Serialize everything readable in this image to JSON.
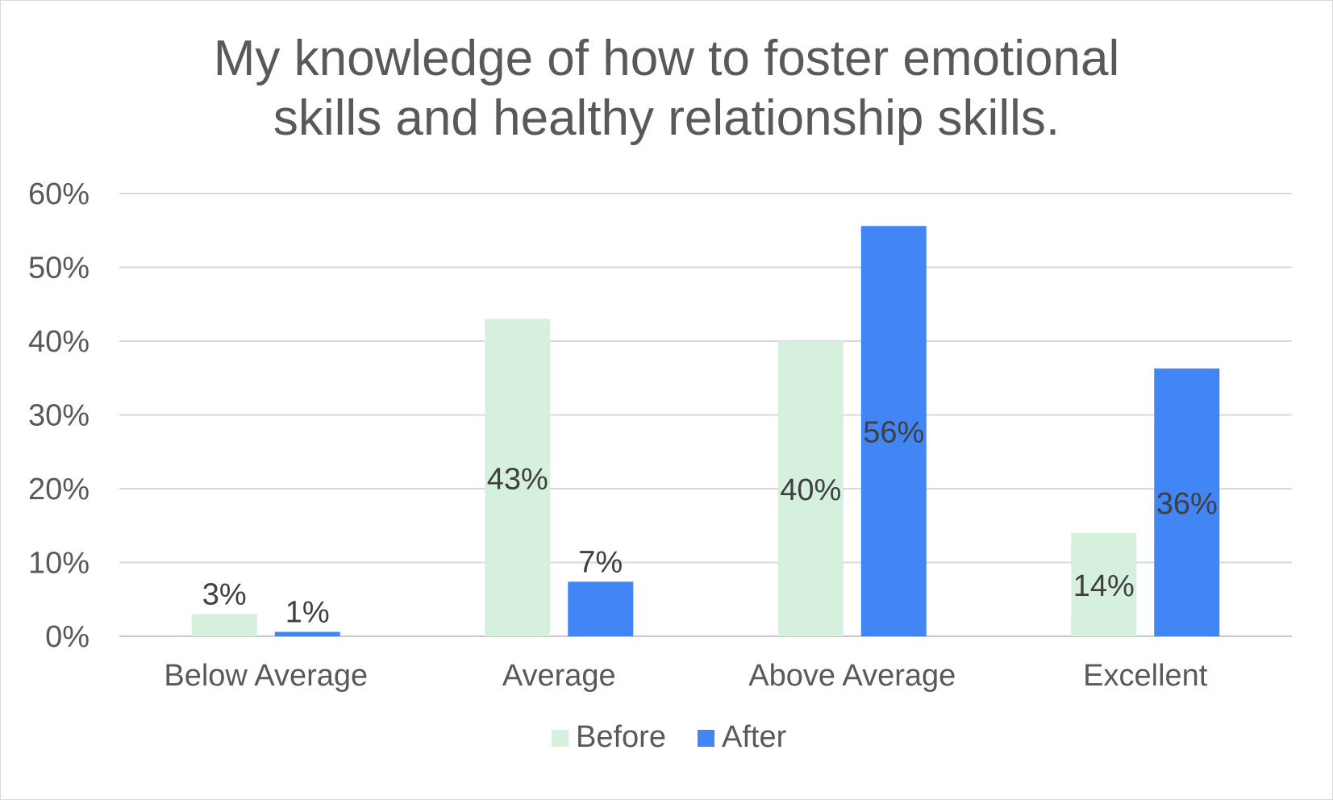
{
  "chart_data": {
    "type": "bar",
    "title_lines": [
      "My knowledge of how to foster emotional",
      "skills and healthy relationship skills."
    ],
    "categories": [
      "Below Average",
      "Average",
      "Above Average",
      "Excellent"
    ],
    "series": [
      {
        "name": "Before",
        "color": "#d5f0dc",
        "values": [
          3,
          43,
          40,
          14
        ],
        "labels": [
          "3%",
          "43%",
          "40%",
          "14%"
        ]
      },
      {
        "name": "After",
        "color": "#4285f4",
        "values": [
          0.6,
          7.4,
          55.6,
          36.3
        ],
        "labels": [
          "1%",
          "7%",
          "56%",
          "36%"
        ]
      }
    ],
    "ylim": [
      0,
      60
    ],
    "yticks": [
      "0%",
      "10%",
      "20%",
      "30%",
      "40%",
      "50%",
      "60%"
    ],
    "grid": true,
    "legend": "bottom"
  }
}
